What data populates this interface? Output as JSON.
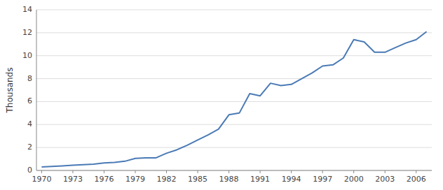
{
  "chart_data": {
    "type": "line",
    "ylabel": "Thousands",
    "x": [
      1970,
      1971,
      1972,
      1973,
      1974,
      1975,
      1976,
      1977,
      1978,
      1979,
      1980,
      1981,
      1982,
      1983,
      1984,
      1985,
      1986,
      1987,
      1988,
      1989,
      1990,
      1991,
      1992,
      1993,
      1994,
      1995,
      1996,
      1997,
      1998,
      1999,
      2000,
      2001,
      2002,
      2003,
      2004,
      2005,
      2006,
      2007
    ],
    "values": [
      0.3,
      0.35,
      0.4,
      0.45,
      0.5,
      0.55,
      0.65,
      0.7,
      0.8,
      1.05,
      1.1,
      1.1,
      1.5,
      1.8,
      2.2,
      2.65,
      3.1,
      3.6,
      4.85,
      5.0,
      6.7,
      6.5,
      7.6,
      7.4,
      7.5,
      8.0,
      8.5,
      9.1,
      9.2,
      9.8,
      11.4,
      11.2,
      10.3,
      10.3,
      10.7,
      11.1,
      11.4,
      12.1
    ],
    "color": "#4a7ab5",
    "xlim": [
      1969.5,
      2007.5
    ],
    "xticks": [
      1970,
      1973,
      1976,
      1979,
      1982,
      1985,
      1988,
      1991,
      1994,
      1997,
      2000,
      2003,
      2006
    ],
    "ylim": [
      0,
      14
    ],
    "yticks": [
      0,
      2,
      4,
      6,
      8,
      10,
      12,
      14
    ],
    "grid": "y"
  }
}
